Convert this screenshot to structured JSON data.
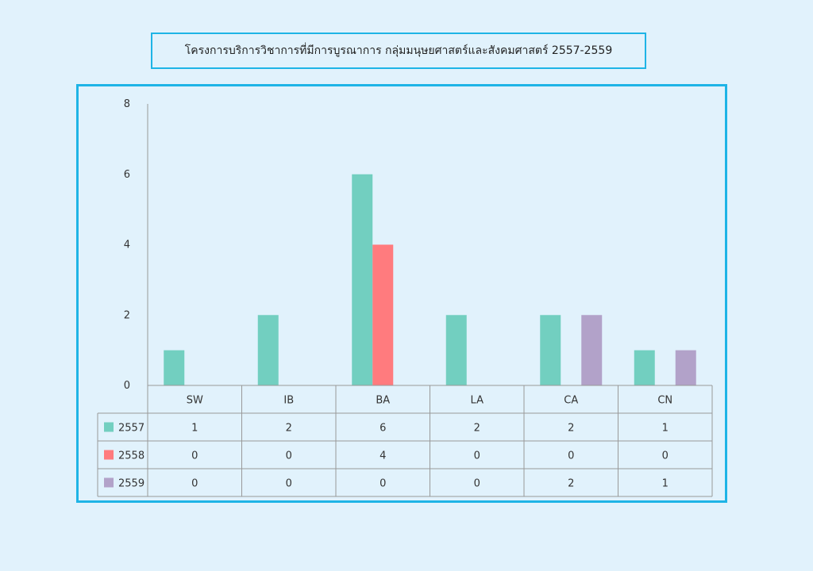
{
  "header": {
    "title": "โครงการบริการวิชาการที่มีการบูรณาการ กลุ่มมนุษยศาสตร์และสังคมศาสตร์  2557-2559"
  },
  "chart_data": {
    "type": "bar",
    "title": "โครงการบริการวิชาการที่มีการบูรณาการ กลุ่มมนุษยศาสตร์และสังคมศาสตร์  2557-2559",
    "categories": [
      "SW",
      "IB",
      "BA",
      "LA",
      "CA",
      "CN"
    ],
    "series": [
      {
        "name": "2557",
        "color": "#72cfc0",
        "values": [
          1,
          2,
          6,
          2,
          2,
          1
        ]
      },
      {
        "name": "2558",
        "color": "#ff7b7e",
        "values": [
          0,
          0,
          4,
          0,
          0,
          0
        ]
      },
      {
        "name": "2559",
        "color": "#b2a2c9",
        "values": [
          0,
          0,
          0,
          0,
          2,
          1
        ]
      }
    ],
    "yticks": [
      "0",
      "2",
      "4",
      "6",
      "8"
    ],
    "ylim": [
      0,
      8
    ],
    "grid": false,
    "legend": "data-table-below"
  }
}
